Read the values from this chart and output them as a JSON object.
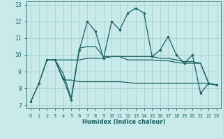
{
  "background_color": "#c8eaea",
  "grid_color": "#a8d0d0",
  "line_color": "#1a6060",
  "xlabel": "Humidex (Indice chaleur)",
  "xlim": [
    -0.5,
    23.5
  ],
  "ylim": [
    6.8,
    13.2
  ],
  "yticks": [
    7,
    8,
    9,
    10,
    11,
    12,
    13
  ],
  "xticks": [
    0,
    1,
    2,
    3,
    4,
    5,
    6,
    7,
    8,
    9,
    10,
    11,
    12,
    13,
    14,
    15,
    16,
    17,
    18,
    19,
    20,
    21,
    22,
    23
  ],
  "line1_x": [
    0,
    1,
    2,
    3,
    4,
    5,
    6,
    7,
    8,
    9,
    10,
    11,
    12,
    13,
    14,
    15,
    16,
    17,
    18,
    19,
    20,
    21,
    22,
    23
  ],
  "line1_y": [
    7.2,
    8.3,
    9.7,
    9.7,
    8.6,
    7.3,
    10.3,
    12.0,
    11.4,
    9.8,
    12.0,
    11.5,
    12.5,
    12.8,
    12.5,
    9.9,
    10.3,
    11.1,
    10.0,
    9.5,
    10.0,
    7.7,
    8.3,
    8.2
  ],
  "line2_x": [
    0,
    1,
    2,
    3,
    4,
    5,
    6,
    7,
    8,
    9,
    10,
    11,
    12,
    13,
    14,
    15,
    16,
    17,
    18,
    19,
    20,
    21,
    22,
    23
  ],
  "line2_y": [
    7.2,
    8.3,
    9.7,
    9.7,
    9.7,
    9.7,
    9.7,
    9.8,
    9.8,
    9.8,
    9.9,
    9.9,
    9.9,
    9.9,
    9.9,
    9.9,
    9.8,
    9.8,
    9.7,
    9.6,
    9.6,
    9.5,
    8.3,
    8.2
  ],
  "line3_x": [
    2,
    3,
    4,
    5,
    6,
    7,
    8,
    9,
    10,
    11,
    12,
    13,
    14,
    15,
    16,
    17,
    18,
    19,
    20,
    21,
    22,
    23
  ],
  "line3_y": [
    9.7,
    9.7,
    8.5,
    8.5,
    8.4,
    8.4,
    8.4,
    8.4,
    8.4,
    8.4,
    8.35,
    8.3,
    8.3,
    8.3,
    8.3,
    8.3,
    8.3,
    8.3,
    8.3,
    8.3,
    8.3,
    8.2
  ],
  "line4_x": [
    2,
    3,
    4,
    5,
    6,
    7,
    8,
    9,
    10,
    11,
    12,
    13,
    14,
    15,
    16,
    17,
    18,
    19,
    20,
    21,
    22,
    23
  ],
  "line4_y": [
    9.7,
    9.7,
    8.9,
    7.4,
    10.4,
    10.5,
    10.5,
    9.9,
    9.9,
    9.9,
    9.7,
    9.7,
    9.7,
    9.7,
    9.65,
    9.65,
    9.55,
    9.5,
    9.5,
    9.5,
    8.3,
    8.2
  ]
}
